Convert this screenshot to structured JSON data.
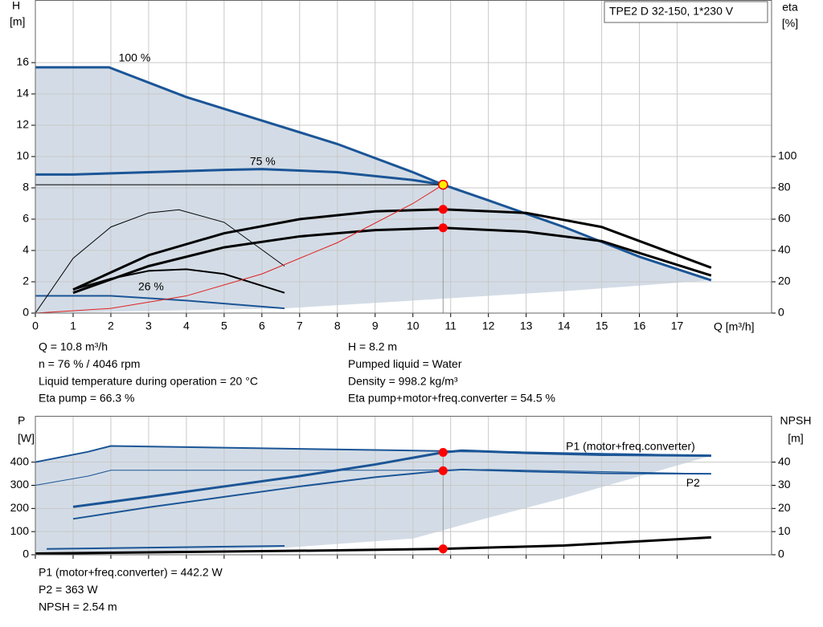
{
  "chart_data": [
    {
      "type": "line",
      "title": "TPE2 D 32-150, 1*230 V",
      "y_label": [
        "H",
        "[m]"
      ],
      "y2_label": [
        "eta",
        "[%]"
      ],
      "x_label": "Q [m³/h]",
      "xlim": [
        0,
        19.5
      ],
      "xticks": [
        0,
        1,
        2,
        3,
        4,
        5,
        6,
        7,
        8,
        9,
        10,
        11,
        12,
        13,
        14,
        15,
        16,
        17
      ],
      "xtick_labels": true,
      "ylim": [
        0,
        20
      ],
      "yticks": [
        0,
        2,
        4,
        6,
        8,
        10,
        12,
        14,
        16
      ],
      "y2lim": [
        0,
        200
      ],
      "y2ticks": [
        0,
        20,
        40,
        60,
        80,
        100
      ],
      "grid": true,
      "envelope_color": "#d3dce6",
      "envelope": {
        "x": [
          0,
          6.6,
          10,
          14,
          17.9
        ],
        "values": [
          0,
          0.3,
          0.8,
          1.4,
          2.1
        ]
      },
      "series": [
        {
          "name": "100 %",
          "color": "#1b5596",
          "style": "thick",
          "x": [
            0,
            1.95,
            4,
            6,
            8,
            10,
            10.8,
            12,
            14,
            16,
            17.9
          ],
          "values": [
            15.7,
            15.7,
            13.8,
            12.3,
            10.8,
            9.0,
            8.2,
            7.2,
            5.5,
            3.6,
            2.1
          ]
        },
        {
          "name": "75 %",
          "color": "#1b5596",
          "style": "thick",
          "x": [
            0,
            1,
            3,
            5,
            6,
            8,
            10,
            10.8
          ],
          "values": [
            8.85,
            8.85,
            9.0,
            9.15,
            9.2,
            9.0,
            8.5,
            8.2
          ]
        },
        {
          "name": "26 %",
          "color": "#1b5596",
          "style": "medium",
          "x": [
            0,
            0.3,
            2,
            4,
            6.6
          ],
          "values": [
            1.1,
            1.1,
            1.1,
            0.8,
            0.3
          ]
        },
        {
          "color": "#000000",
          "style": "thick",
          "axis": "y2",
          "x": [
            1,
            3,
            5,
            7,
            9,
            10.8,
            13,
            15,
            17.9
          ],
          "values": [
            15,
            37,
            51,
            60,
            65,
            66.3,
            64,
            55,
            29
          ]
        },
        {
          "color": "#000000",
          "style": "thick",
          "axis": "y2",
          "x": [
            1,
            3,
            5,
            7,
            9,
            10.8,
            13,
            15,
            17.9
          ],
          "values": [
            13,
            30,
            42,
            49,
            53,
            54.5,
            52,
            46,
            24
          ]
        },
        {
          "color": "#000000",
          "style": "thin",
          "axis": "y2",
          "x": [
            0,
            1,
            2,
            3,
            3.8,
            5,
            6.6
          ],
          "values": [
            0,
            35,
            55,
            64,
            66,
            58,
            30
          ]
        },
        {
          "color": "#000000",
          "style": "medium",
          "axis": "y2",
          "x": [
            1,
            2,
            3,
            4,
            5,
            6.6
          ],
          "values": [
            15,
            22,
            27,
            28,
            25,
            13
          ]
        },
        {
          "color": "#e02020",
          "style": "thin",
          "x": [
            0,
            2,
            4,
            6,
            8,
            10,
            10.8
          ],
          "values": [
            0,
            0.3,
            1.1,
            2.5,
            4.5,
            7.0,
            8.2
          ]
        }
      ],
      "points": [
        {
          "x": 10.8,
          "y": 8.2,
          "color": "#ffee00"
        },
        {
          "x": 10.8,
          "y": 66.3,
          "axis": "y2",
          "color": "#ff0000"
        },
        {
          "x": 10.8,
          "y": 54.5,
          "axis": "y2",
          "color": "#ff0000"
        }
      ]
    },
    {
      "type": "line",
      "y_label": [
        "P",
        "[W]"
      ],
      "y2_label": [
        "NPSH",
        "[m]"
      ],
      "xlim": [
        0,
        19.5
      ],
      "xticks": [
        0,
        1,
        2,
        3,
        4,
        5,
        6,
        7,
        8,
        9,
        10,
        11,
        12,
        13,
        14,
        15,
        16,
        17
      ],
      "xtick_labels": false,
      "ylim": [
        0,
        600
      ],
      "yticks": [
        0,
        100,
        200,
        300,
        400
      ],
      "y2lim": [
        0,
        60
      ],
      "y2ticks": [
        0,
        10,
        20,
        30,
        40
      ],
      "grid": true,
      "envelope_color": "#d3dce6",
      "envelope": {
        "x": [
          0,
          6.6,
          10,
          12,
          14,
          17.9
        ],
        "values": [
          0,
          30,
          70,
          160,
          245,
          428
        ]
      },
      "series": [
        {
          "color": "#1b5596",
          "style": "medium",
          "x": [
            0,
            1.4,
            2,
            6,
            10,
            12,
            17.9
          ],
          "values": [
            400,
            445,
            470,
            460,
            450,
            445,
            428
          ]
        },
        {
          "color": "#1b5596",
          "style": "thin",
          "x": [
            0,
            1.4,
            2,
            6,
            10,
            12,
            17.9
          ],
          "values": [
            300,
            340,
            365,
            365,
            365,
            368,
            350
          ]
        },
        {
          "name": "P1 (motor+freq.converter)",
          "color": "#1b5596",
          "style": "thick",
          "x": [
            1,
            3,
            5,
            7,
            9,
            10.8,
            11.3,
            13,
            15,
            17.9
          ],
          "values": [
            207,
            250,
            295,
            340,
            390,
            442.2,
            450,
            440,
            432,
            428
          ]
        },
        {
          "name": "P2",
          "color": "#1b5596",
          "style": "medium",
          "x": [
            1,
            3,
            5,
            7,
            9,
            10.8,
            11.3,
            13,
            15,
            17.9
          ],
          "values": [
            155,
            205,
            250,
            295,
            335,
            363,
            368,
            360,
            352,
            350
          ]
        },
        {
          "color": "#1b5596",
          "style": "medium",
          "x": [
            0.3,
            6.6
          ],
          "values": [
            25,
            38
          ]
        },
        {
          "color": "#000000",
          "style": "thick",
          "axis": "y2",
          "x": [
            0,
            4,
            8,
            10.8,
            14,
            17.9
          ],
          "values": [
            0.5,
            1.2,
            1.9,
            2.54,
            4,
            7.5
          ]
        }
      ],
      "points": [
        {
          "x": 10.8,
          "y": 442.2,
          "color": "#ff0000"
        },
        {
          "x": 10.8,
          "y": 363,
          "color": "#ff0000"
        },
        {
          "x": 10.8,
          "y": 2.54,
          "axis": "y2",
          "color": "#ff0000"
        }
      ]
    }
  ],
  "readout_top": {
    "left": [
      "Q = 10.8 m³/h",
      "n = 76 % / 4046 rpm",
      "Liquid temperature during operation = 20 °C",
      "Eta pump = 66.3 %"
    ],
    "right": [
      "H = 8.2 m",
      "Pumped liquid = Water",
      "Density = 998.2 kg/m³",
      "Eta pump+motor+freq.converter = 54.5 %"
    ]
  },
  "readout_bottom": [
    "P1 (motor+freq.converter) = 442.2 W",
    "P2 = 363 W",
    "NPSH = 2.54 m"
  ]
}
